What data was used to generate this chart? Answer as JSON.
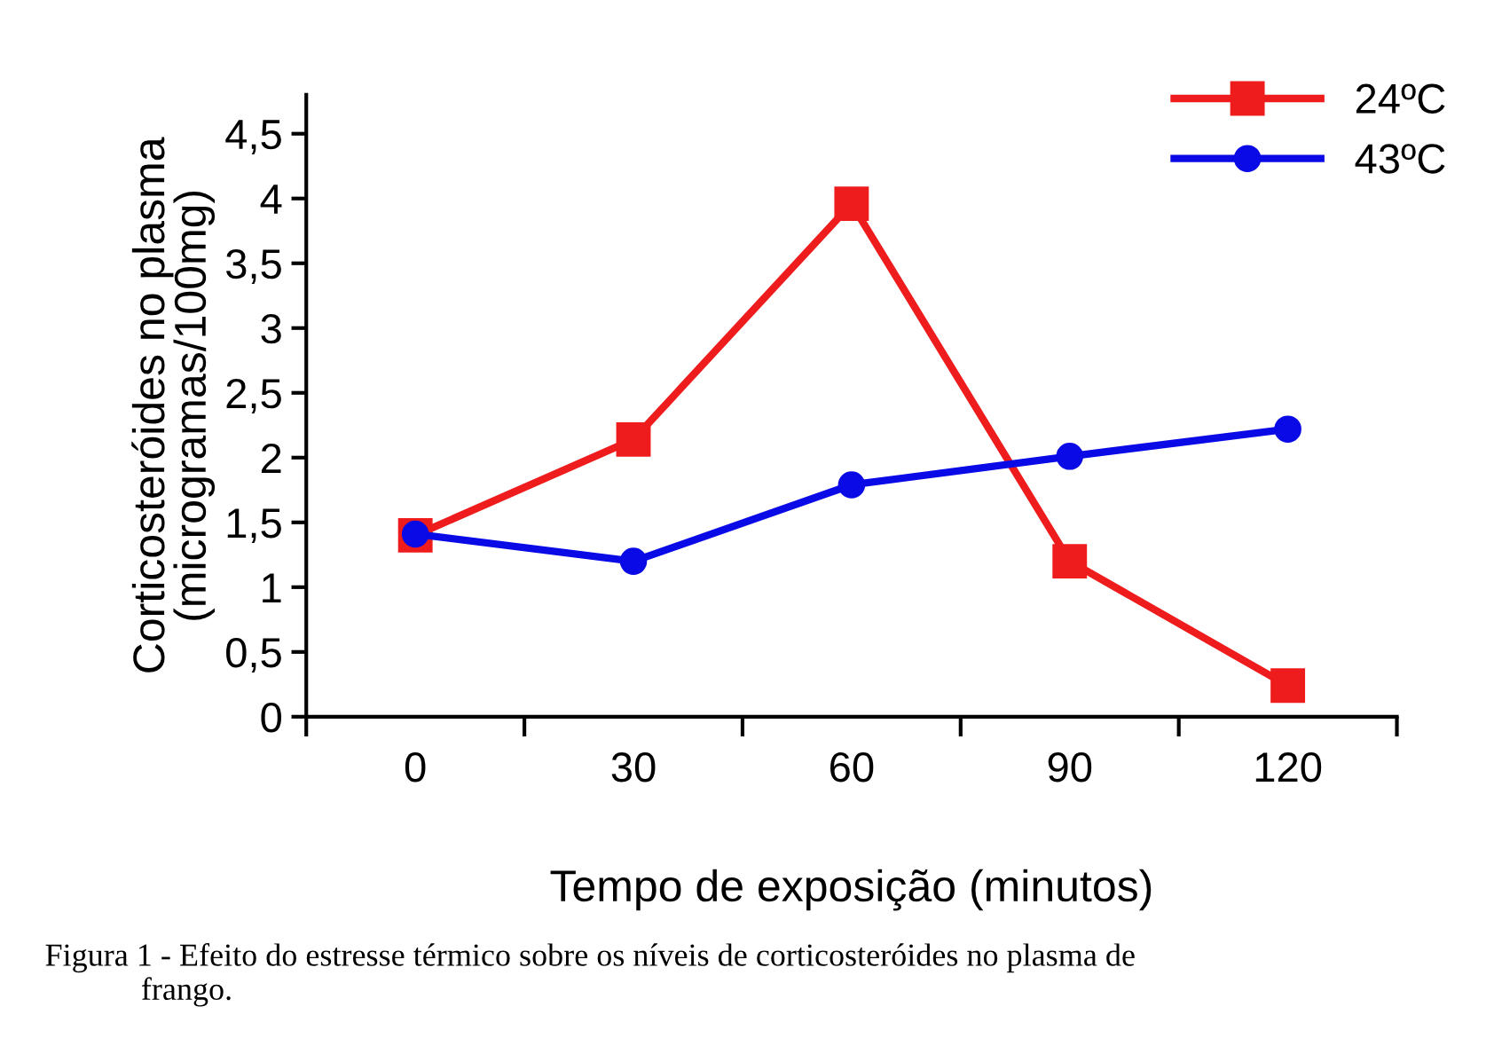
{
  "chart_data": {
    "type": "line",
    "xlabel": "Tempo de exposição (minutos)",
    "ylabel": "Corticosteróides no plasma\n(microgramas/100mg)",
    "categories": [
      "0",
      "30",
      "60",
      "90",
      "120"
    ],
    "series": [
      {
        "name": "24ºC",
        "color": "#ee1c1c",
        "marker": "square",
        "values": [
          1.4,
          2.14,
          3.96,
          1.2,
          0.24
        ]
      },
      {
        "name": "43ºC",
        "color": "#0a0ae6",
        "marker": "circle",
        "values": [
          1.41,
          1.2,
          1.79,
          2.01,
          2.22
        ]
      }
    ],
    "ylim": [
      0,
      4.8
    ],
    "yticks": [
      0,
      {
        "value": 0.5,
        "label": "0,5"
      },
      1,
      {
        "value": 1.5,
        "label": "1,5"
      },
      2,
      {
        "value": 2.5,
        "label": "2,5"
      },
      3,
      {
        "value": 3.5,
        "label": "3,5"
      },
      4,
      {
        "value": 4.5,
        "label": "4,5"
      }
    ],
    "grid": false,
    "legend": "top right",
    "line_style": "solid",
    "annotations": [
      "Figura 1 - Efeito do estresse térmico sobre os níveis de corticosteróides no plasma de\n            frango."
    ]
  }
}
